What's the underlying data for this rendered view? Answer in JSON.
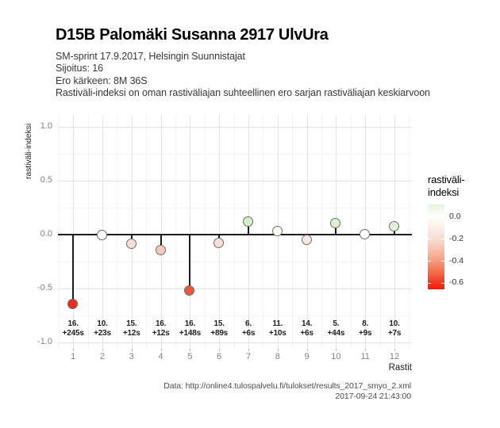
{
  "header": {
    "title": "D15B Palomäki Susanna 2917 UlvUra",
    "subtitle_lines": [
      "SM-sprint 17.9.2017, Helsingin Suunnistajat",
      "Sijoitus: 16",
      "Ero kärkeen: 8M 36S",
      "Rastiväli-indeksi on oman rastiväliajan suhteellinen ero sarjan rastiväliajan keskiarvoon"
    ]
  },
  "chart_data": {
    "type": "scatter",
    "style": "lollipop",
    "title": "D15B Palomäki Susanna 2917 UlvUra",
    "xlabel": "Rastit",
    "ylabel": "rastiväli-indeksi",
    "ylim": [
      -1.0,
      1.0
    ],
    "xlim": [
      0.45,
      12.6
    ],
    "grid": "on",
    "yticks": [
      {
        "value": 1.0,
        "label": "1.0"
      },
      {
        "value": 0.5,
        "label": "0.5"
      },
      {
        "value": 0.0,
        "label": "0.0"
      },
      {
        "value": -0.5,
        "label": "-0.5"
      },
      {
        "value": -1.0,
        "label": "-1.0"
      }
    ],
    "yticks_minor": [
      0.75,
      0.25,
      -0.25,
      -0.75
    ],
    "points": [
      {
        "x": 1,
        "value": -0.65,
        "color": "#ee2c1e",
        "label_top": "16.",
        "label_bottom": "+245s"
      },
      {
        "x": 2,
        "value": -0.01,
        "color": "#ffffff",
        "label_top": "10.",
        "label_bottom": "+23s"
      },
      {
        "x": 3,
        "value": -0.09,
        "color": "#f8ddd4",
        "label_top": "15.",
        "label_bottom": "+12s"
      },
      {
        "x": 4,
        "value": -0.15,
        "color": "#f6c9ba",
        "label_top": "16.",
        "label_bottom": "+12s"
      },
      {
        "x": 5,
        "value": -0.52,
        "color": "#f05640",
        "label_top": "16.",
        "label_bottom": "+148s"
      },
      {
        "x": 6,
        "value": -0.08,
        "color": "#f8ded6",
        "label_top": "15.",
        "label_bottom": "+89s"
      },
      {
        "x": 7,
        "value": 0.12,
        "color": "#d8efcb",
        "label_top": "6.",
        "label_bottom": "+6s"
      },
      {
        "x": 8,
        "value": 0.03,
        "color": "#fbfdf9",
        "label_top": "11.",
        "label_bottom": "+10s"
      },
      {
        "x": 9,
        "value": -0.05,
        "color": "#fae8e2",
        "label_top": "14.",
        "label_bottom": "+6s"
      },
      {
        "x": 10,
        "value": 0.1,
        "color": "#daf0ce",
        "label_top": "5.",
        "label_bottom": "+44s"
      },
      {
        "x": 11,
        "value": 0.0,
        "color": "#ffffff",
        "label_top": "8.",
        "label_bottom": "+9s"
      },
      {
        "x": 12,
        "value": 0.07,
        "color": "#e3f3d8",
        "label_top": "10.",
        "label_bottom": "+7s"
      }
    ],
    "legend": {
      "title_lines": [
        "rastiväli-",
        "indeksi"
      ],
      "position": "right",
      "top_value": 0.115,
      "bottom_value": -0.66,
      "ticks": [
        {
          "value": 0.0,
          "label": "0.0"
        },
        {
          "value": -0.2,
          "label": "-0.2"
        },
        {
          "value": -0.4,
          "label": "-0.4"
        },
        {
          "value": -0.6,
          "label": "-0.6"
        }
      ],
      "gradient": [
        {
          "pos": 0,
          "color": "#e4f4da"
        },
        {
          "pos": 0.14,
          "color": "#ffffff"
        },
        {
          "pos": 0.4,
          "color": "#f9ded3"
        },
        {
          "pos": 0.55,
          "color": "#f7bda7"
        },
        {
          "pos": 0.67,
          "color": "#f49a7e"
        },
        {
          "pos": 0.8,
          "color": "#f36c4b"
        },
        {
          "pos": 0.92,
          "color": "#f23822"
        },
        {
          "pos": 1,
          "color": "#fc1708"
        }
      ]
    },
    "colors": {
      "stem": "#1c1c1c",
      "zero_line": "#1c1c1c",
      "point_stroke": "#6e6e6e",
      "grid_major": "#e4e4e4",
      "grid_minor": "#f2f2f2"
    }
  },
  "caption": {
    "line1": "Data: http://online4.tulospalvelu.fi/tulokset/results_2017_smyo_2.xml",
    "line2": "2017-09-24 21:43:00"
  }
}
